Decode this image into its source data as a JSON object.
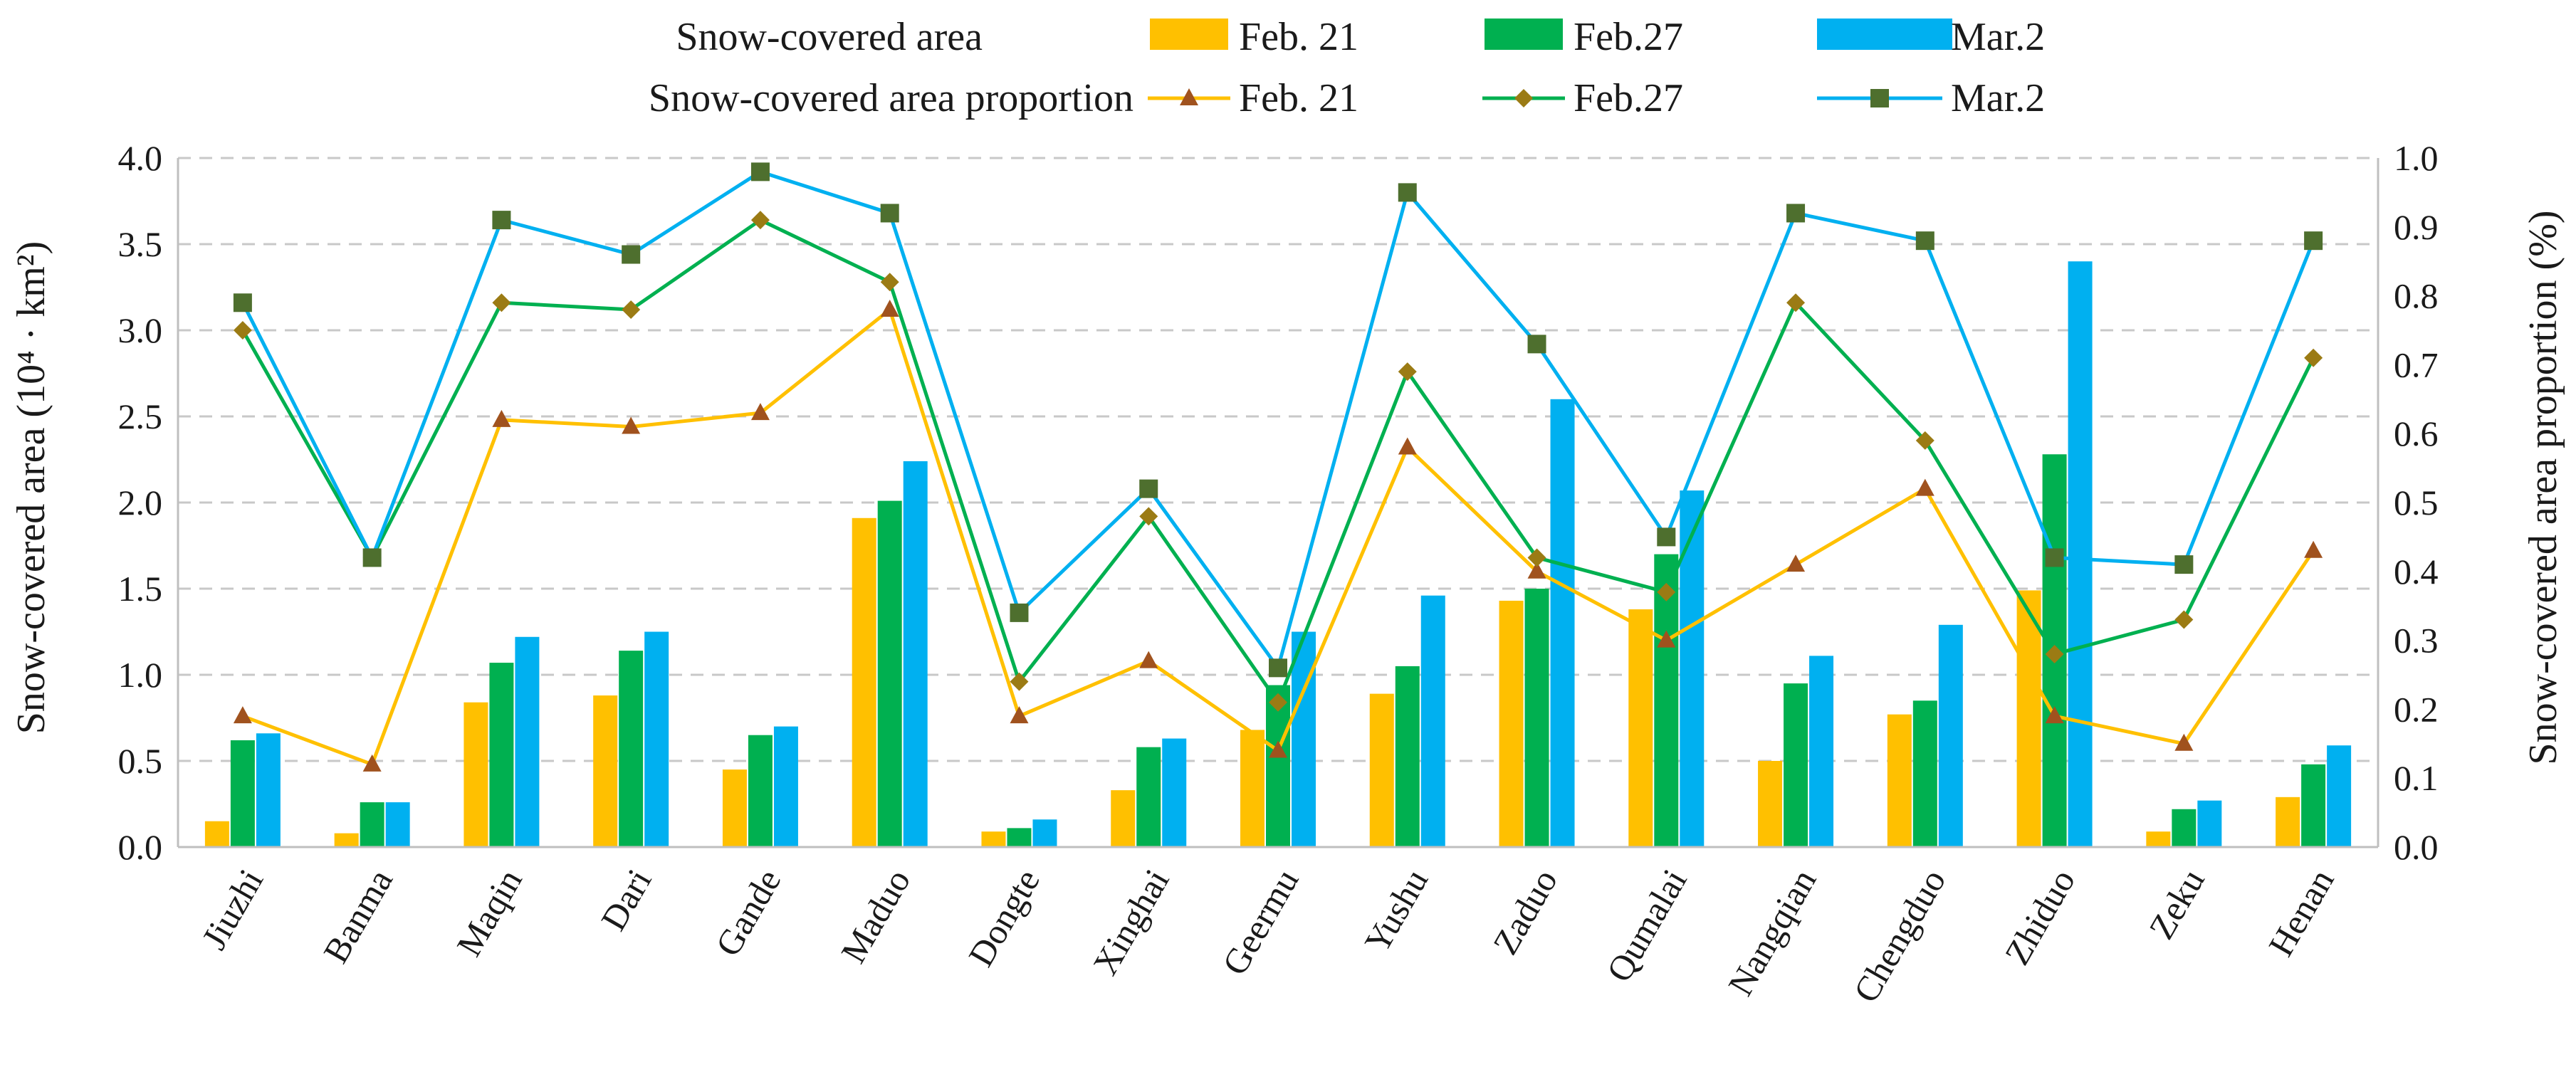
{
  "chart_data": {
    "type": "bar+line",
    "categories": [
      "Jiuzhi",
      "Banma",
      "Maqin",
      "Dari",
      "Gande",
      "Maduo",
      "Dongte",
      "Xinghai",
      "Geermu",
      "Yushu",
      "Zaduo",
      "Qumalai",
      "Nangqian",
      "Chengduo",
      "Zhiduo",
      "Zeku",
      "Henan"
    ],
    "bar_series": [
      {
        "name": "Feb. 21",
        "color": "#FFC000",
        "values": [
          0.15,
          0.08,
          0.84,
          0.88,
          0.45,
          1.91,
          0.09,
          0.33,
          0.68,
          0.89,
          1.43,
          1.38,
          0.5,
          0.77,
          1.49,
          0.09,
          0.29
        ]
      },
      {
        "name": "Feb.27",
        "color": "#00B050",
        "values": [
          0.62,
          0.26,
          1.07,
          1.14,
          0.65,
          2.01,
          0.11,
          0.58,
          0.94,
          1.05,
          1.5,
          1.7,
          0.95,
          0.85,
          2.28,
          0.22,
          0.48
        ]
      },
      {
        "name": "Mar.2",
        "color": "#00B0F0",
        "values": [
          0.66,
          0.26,
          1.22,
          1.25,
          0.7,
          2.24,
          0.16,
          0.63,
          1.25,
          1.46,
          2.6,
          2.07,
          1.11,
          1.29,
          3.4,
          0.27,
          0.59
        ]
      }
    ],
    "line_series": [
      {
        "name": "Feb. 21",
        "line_color": "#FFC000",
        "marker": "triangle",
        "marker_color": "#A0521E",
        "values": [
          0.19,
          0.12,
          0.62,
          0.61,
          0.63,
          0.78,
          0.19,
          0.27,
          0.14,
          0.58,
          0.4,
          0.3,
          0.41,
          0.52,
          0.19,
          0.15,
          0.43
        ]
      },
      {
        "name": "Feb.27",
        "line_color": "#00B050",
        "marker": "diamond",
        "marker_color": "#9B7B14",
        "values": [
          0.75,
          0.42,
          0.79,
          0.78,
          0.91,
          0.82,
          0.24,
          0.48,
          0.21,
          0.69,
          0.42,
          0.37,
          0.79,
          0.59,
          0.28,
          0.33,
          0.71
        ]
      },
      {
        "name": "Mar.2",
        "line_color": "#00B0F0",
        "marker": "square",
        "marker_color": "#4E6F2E",
        "values": [
          0.79,
          0.42,
          0.91,
          0.86,
          0.98,
          0.92,
          0.34,
          0.52,
          0.26,
          0.95,
          0.73,
          0.45,
          0.92,
          0.88,
          0.42,
          0.41,
          0.88
        ]
      }
    ],
    "ylabel_left": "Snow-covered area (10⁴ · km²)",
    "ylabel_right": "Snow-covered area proportion (%)",
    "ylim_left": [
      0,
      4.0
    ],
    "ylim_right": [
      0,
      1.0
    ],
    "yticks_left": [
      "0.0",
      "0.5",
      "1.0",
      "1.5",
      "2.0",
      "2.5",
      "3.0",
      "3.5",
      "4.0"
    ],
    "yticks_right": [
      "0.0",
      "0.1",
      "0.2",
      "0.3",
      "0.4",
      "0.5",
      "0.6",
      "0.7",
      "0.8",
      "0.9",
      "1.0"
    ],
    "legend": {
      "position": "top",
      "bar_group_label": "Snow-covered area",
      "line_group_label": "Snow-covered area proportion"
    },
    "grid": true
  }
}
